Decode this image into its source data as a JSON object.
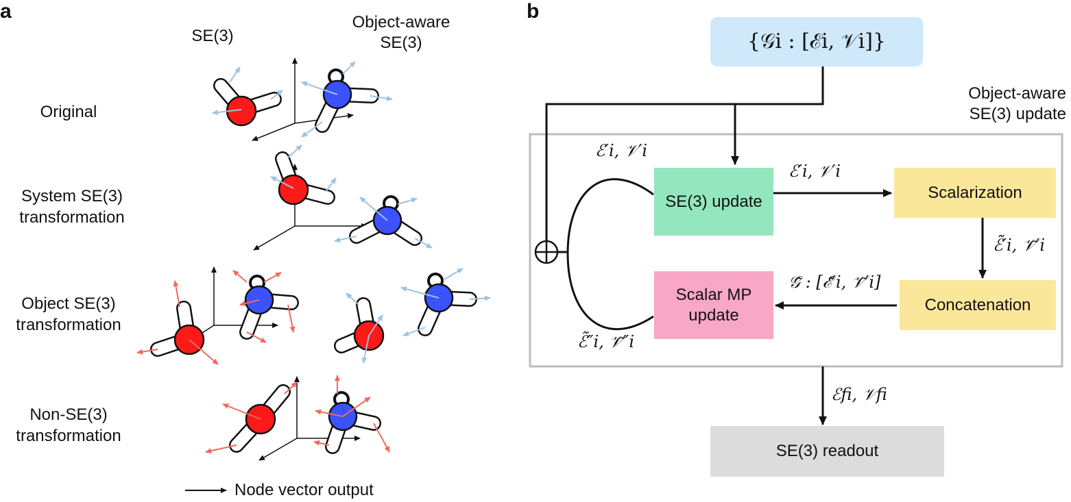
{
  "panel_a": {
    "label": "a",
    "col_se3": "SE(3)",
    "col_object_aware": "Object-aware SE(3)",
    "rows": [
      "Original",
      "System SE(3) transformation",
      "Object SE(3) transformation",
      "Non-SE(3) transformation"
    ],
    "legend": "Node vector output"
  },
  "panel_b": {
    "label": "b",
    "input": "{𝒢i : [ℰi, 𝒱i]}",
    "block_title": "Object-aware SE(3) update",
    "se3_update": "SE(3) update",
    "scalarization": "Scalarization",
    "concatenation": "Concatenation",
    "scalar_mp_update": "Scalar MP update",
    "readout": "SE(3) readout",
    "edge_loop_in": "ℰ′i, 𝒱′i",
    "edge_se3_to_scalar": "ℰ′i, 𝒱′i",
    "edge_scalar_to_concat": "ℰ̃′i, 𝒱̃′i",
    "edge_concat_to_mp": "𝒢̃ : [ℰ̃′i, 𝒱̃′i]",
    "edge_loop_out": "ℰ̃″i, 𝒱̃″i",
    "edge_readout": "ℰfi, 𝒱fi"
  },
  "colors": {
    "input_box": "#cfe8fa",
    "se3_box": "#93e6bd",
    "scalar_box": "#fbe79a",
    "mp_box": "#f8a7c4",
    "readout_box": "#dcdcdc",
    "red_atom": "#ff1a1a",
    "blue_atom": "#3a52ff",
    "red_arrow": "#ef6a5c",
    "blue_arrow": "#9fc3e0"
  }
}
